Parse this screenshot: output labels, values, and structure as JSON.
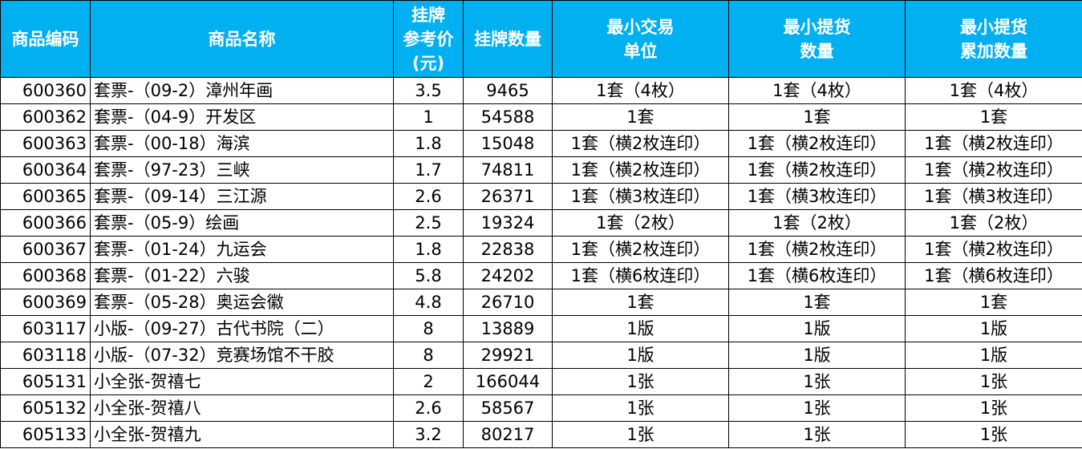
{
  "header_color": "#00b0f0",
  "columns": [
    "商品编码",
    "商品名称",
    "挂牌\n参考价\n(元)",
    "挂牌数量",
    "最小交易\n单位",
    "最小提货\n数量",
    "最小提货\n累加数量"
  ],
  "rows": [
    [
      "600360",
      "套票-（09-2）漳州年画",
      "3.5",
      "9465",
      "1套（4枚）",
      "1套（4枚）",
      "1套（4枚）"
    ],
    [
      "600362",
      "套票-（04-9）开发区",
      "1",
      "54588",
      "1套",
      "1套",
      "1套"
    ],
    [
      "600363",
      "套票-（00-18）海滨",
      "1.8",
      "15048",
      "1套（横2枚连印）",
      "1套（横2枚连印）",
      "1套（横2枚连印）"
    ],
    [
      "600364",
      "套票-（97-23）三峡",
      "1.7",
      "74811",
      "1套（横2枚连印）",
      "1套（横2枚连印）",
      "1套（横2枚连印）"
    ],
    [
      "600365",
      "套票-（09-14）三江源",
      "2.6",
      "26371",
      "1套（横3枚连印）",
      "1套（横3枚连印）",
      "1套（横3枚连印）"
    ],
    [
      "600366",
      "套票-（05-9）绘画",
      "2.5",
      "19324",
      "1套（2枚）",
      "1套（2枚）",
      "1套（2枚）"
    ],
    [
      "600367",
      "套票-（01-24）九运会",
      "1.8",
      "22838",
      "1套（横2枚连印）",
      "1套（横2枚连印）",
      "1套（横2枚连印）"
    ],
    [
      "600368",
      "套票-（01-22）六骏",
      "5.8",
      "24202",
      "1套（横6枚连印）",
      "1套（横6枚连印）",
      "1套（横6枚连印）"
    ],
    [
      "600369",
      "套票-（05-28）奥运会徽",
      "4.8",
      "26710",
      "1套",
      "1套",
      "1套"
    ],
    [
      "603117",
      "小版-（09-27）古代书院（二）",
      "8",
      "13889",
      "1版",
      "1版",
      "1版"
    ],
    [
      "603118",
      "小版-（07-32）竞赛场馆不干胶",
      "8",
      "29921",
      "1版",
      "1版",
      "1版"
    ],
    [
      "605131",
      "小全张-贺禧七",
      "2",
      "166044",
      "1张",
      "1张",
      "1张"
    ],
    [
      "605132",
      "小全张-贺禧八",
      "2.6",
      "58567",
      "1张",
      "1张",
      "1张"
    ],
    [
      "605133",
      "小全张-贺禧九",
      "3.2",
      "80217",
      "1张",
      "1张",
      "1张"
    ]
  ]
}
